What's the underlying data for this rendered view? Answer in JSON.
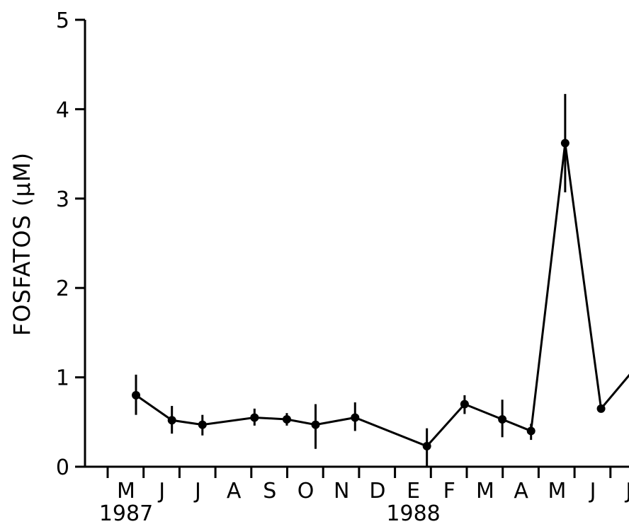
{
  "chart_data": {
    "type": "line",
    "title": "",
    "xlabel": "",
    "ylabel": "FOSFATOS (μM)",
    "ylim": [
      0,
      5
    ],
    "yticks": [
      "0",
      "1",
      "2",
      "3",
      "4",
      "5"
    ],
    "grid": false,
    "x_month_labels": [
      "M",
      "J",
      "J",
      "A",
      "S",
      "O",
      "N",
      "D",
      "E",
      "F",
      "M",
      "A",
      "M",
      "J",
      "J"
    ],
    "x_year_labels": [
      {
        "text": "1987",
        "month_index": 0
      },
      {
        "text": "1988",
        "month_index": 8
      }
    ],
    "series": [
      {
        "points": [
          {
            "x": 0.0,
            "y": 0.8,
            "err_low": 0.58,
            "err_high": 1.03
          },
          {
            "x": 1.0,
            "y": 0.52,
            "err_low": 0.37,
            "err_high": 0.68
          },
          {
            "x": 1.85,
            "y": 0.47,
            "err_low": 0.35,
            "err_high": 0.58
          },
          {
            "x": 3.3,
            "y": 0.55,
            "err_low": 0.46,
            "err_high": 0.65
          },
          {
            "x": 4.2,
            "y": 0.53,
            "err_low": 0.46,
            "err_high": 0.6
          },
          {
            "x": 5.0,
            "y": 0.47,
            "err_low": 0.2,
            "err_high": 0.7
          },
          {
            "x": 6.1,
            "y": 0.55,
            "err_low": 0.4,
            "err_high": 0.72
          },
          {
            "x": 8.1,
            "y": 0.23,
            "err_low": 0.0,
            "err_high": 0.43
          },
          {
            "x": 9.15,
            "y": 0.7,
            "err_low": 0.59,
            "err_high": 0.8
          },
          {
            "x": 10.2,
            "y": 0.53,
            "err_low": 0.33,
            "err_high": 0.75
          },
          {
            "x": 11.0,
            "y": 0.4,
            "err_low": 0.3,
            "err_high": 0.48
          },
          {
            "x": 11.95,
            "y": 3.62,
            "err_low": 3.07,
            "err_high": 4.17
          },
          {
            "x": 12.95,
            "y": 0.65,
            "err_low": 0.65,
            "err_high": 0.65
          },
          {
            "x": 13.85,
            "y": 1.08
          }
        ]
      }
    ]
  }
}
